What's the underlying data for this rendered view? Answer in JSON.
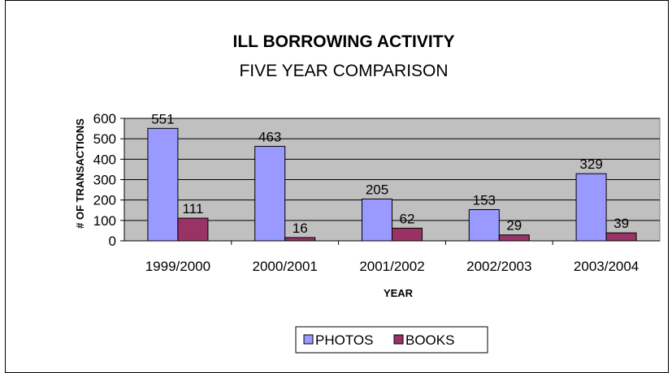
{
  "chart_data": {
    "type": "bar",
    "title": "ILL BORROWING ACTIVITY",
    "subtitle": "FIVE YEAR COMPARISON",
    "xlabel": "YEAR",
    "ylabel": "# OF TRANSACTIONS",
    "categories": [
      "1999/2000",
      "2000/2001",
      "2001/2002",
      "2002/2003",
      "2003/2004"
    ],
    "series": [
      {
        "name": "PHOTOS",
        "values": [
          551,
          463,
          205,
          153,
          329
        ],
        "color": "#9999ff"
      },
      {
        "name": "BOOKS",
        "values": [
          111,
          16,
          62,
          29,
          39
        ],
        "color": "#993366"
      }
    ],
    "ylim": [
      0,
      600
    ],
    "yticks": [
      0,
      100,
      200,
      300,
      400,
      500,
      600
    ],
    "grid": true,
    "plot_background": "#c0c0c0",
    "legend_position": "bottom"
  }
}
